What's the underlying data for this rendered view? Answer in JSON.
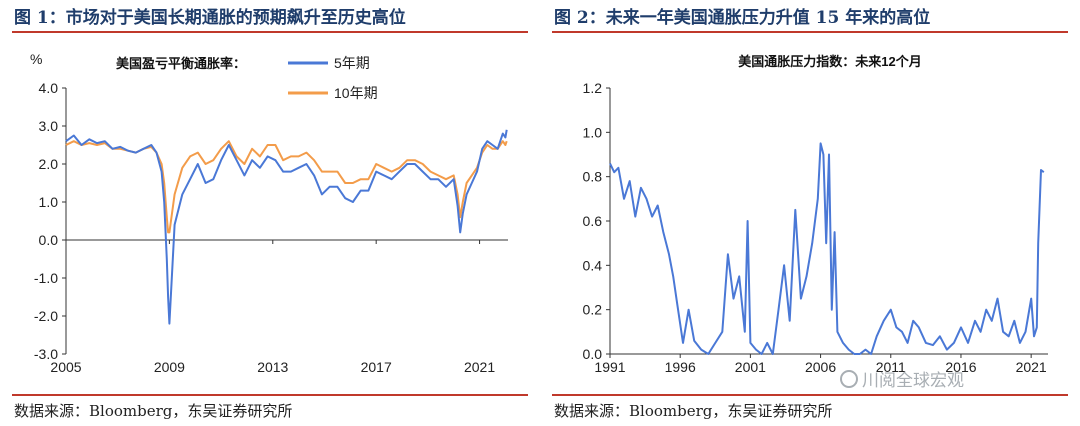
{
  "chart_data": [
    {
      "type": "line",
      "title": "图 1：市场对于美国长期通胀的预期飙升至历史高位",
      "unit": "%",
      "legend_title": "美国盈亏平衡通胀率：",
      "legend_placement": "top-center",
      "xlim": [
        2005,
        2022.1
      ],
      "ylim": [
        -3.0,
        4.0
      ],
      "x_ticks": [
        "2005",
        "2009",
        "2013",
        "2017",
        "2021"
      ],
      "y_ticks": [
        "4.0",
        "3.0",
        "2.0",
        "1.0",
        "0.0",
        "-1.0",
        "-2.0",
        "-3.0"
      ],
      "grid": false,
      "series": [
        {
          "name": "5年期",
          "color": "#4a78d6",
          "x": [
            2005.0,
            2005.3,
            2005.6,
            2005.9,
            2006.2,
            2006.5,
            2006.8,
            2007.1,
            2007.4,
            2007.7,
            2008.0,
            2008.3,
            2008.5,
            2008.7,
            2008.8,
            2008.9,
            2008.95,
            2009.0,
            2009.2,
            2009.5,
            2009.8,
            2010.1,
            2010.4,
            2010.7,
            2011.0,
            2011.3,
            2011.6,
            2011.9,
            2012.2,
            2012.5,
            2012.8,
            2013.1,
            2013.4,
            2013.7,
            2014.0,
            2014.3,
            2014.6,
            2014.9,
            2015.2,
            2015.5,
            2015.8,
            2016.1,
            2016.4,
            2016.7,
            2017.0,
            2017.3,
            2017.6,
            2017.9,
            2018.2,
            2018.5,
            2018.8,
            2019.1,
            2019.4,
            2019.7,
            2020.0,
            2020.15,
            2020.25,
            2020.35,
            2020.5,
            2020.7,
            2020.9,
            2021.1,
            2021.3,
            2021.5,
            2021.7,
            2021.9,
            2022.0,
            2022.05
          ],
          "values": [
            2.6,
            2.75,
            2.5,
            2.65,
            2.55,
            2.6,
            2.4,
            2.45,
            2.35,
            2.3,
            2.4,
            2.5,
            2.3,
            1.8,
            1.0,
            -0.5,
            -1.5,
            -2.2,
            0.4,
            1.2,
            1.6,
            2.0,
            1.5,
            1.6,
            2.1,
            2.5,
            2.1,
            1.7,
            2.1,
            1.9,
            2.2,
            2.1,
            1.8,
            1.8,
            1.9,
            2.0,
            1.7,
            1.2,
            1.4,
            1.4,
            1.1,
            1.0,
            1.3,
            1.3,
            1.8,
            1.7,
            1.6,
            1.8,
            2.0,
            2.0,
            1.8,
            1.6,
            1.6,
            1.4,
            1.6,
            0.9,
            0.2,
            0.7,
            1.2,
            1.5,
            1.8,
            2.4,
            2.6,
            2.5,
            2.4,
            2.8,
            2.7,
            2.9
          ]
        },
        {
          "name": "10年期",
          "color": "#f39c4a",
          "x": [
            2005.0,
            2005.3,
            2005.6,
            2005.9,
            2006.2,
            2006.5,
            2006.8,
            2007.1,
            2007.4,
            2007.7,
            2008.0,
            2008.3,
            2008.5,
            2008.7,
            2008.8,
            2008.9,
            2008.95,
            2009.0,
            2009.2,
            2009.5,
            2009.8,
            2010.1,
            2010.4,
            2010.7,
            2011.0,
            2011.3,
            2011.6,
            2011.9,
            2012.2,
            2012.5,
            2012.8,
            2013.1,
            2013.4,
            2013.7,
            2014.0,
            2014.3,
            2014.6,
            2014.9,
            2015.2,
            2015.5,
            2015.8,
            2016.1,
            2016.4,
            2016.7,
            2017.0,
            2017.3,
            2017.6,
            2017.9,
            2018.2,
            2018.5,
            2018.8,
            2019.1,
            2019.4,
            2019.7,
            2020.0,
            2020.15,
            2020.25,
            2020.35,
            2020.5,
            2020.7,
            2020.9,
            2021.1,
            2021.3,
            2021.5,
            2021.7,
            2021.9,
            2022.0,
            2022.05
          ],
          "values": [
            2.5,
            2.6,
            2.5,
            2.55,
            2.5,
            2.55,
            2.4,
            2.4,
            2.35,
            2.3,
            2.4,
            2.45,
            2.3,
            2.0,
            1.5,
            0.6,
            0.2,
            0.2,
            1.2,
            1.9,
            2.2,
            2.3,
            2.0,
            2.1,
            2.4,
            2.6,
            2.2,
            2.0,
            2.4,
            2.2,
            2.5,
            2.5,
            2.1,
            2.2,
            2.2,
            2.3,
            2.1,
            1.8,
            1.8,
            1.8,
            1.5,
            1.5,
            1.6,
            1.6,
            2.0,
            1.9,
            1.8,
            1.9,
            2.1,
            2.1,
            2.0,
            1.8,
            1.7,
            1.6,
            1.7,
            1.2,
            0.6,
            1.0,
            1.5,
            1.7,
            1.9,
            2.3,
            2.5,
            2.4,
            2.4,
            2.6,
            2.5,
            2.6
          ]
        }
      ]
    },
    {
      "type": "line",
      "title": "图 2：未来一年美国通胀压力升值 15 年来的高位",
      "chart_title": "美国通胀压力指数：未来12个月",
      "xlim": [
        1991,
        2022.2
      ],
      "ylim": [
        0.0,
        1.2
      ],
      "x_ticks": [
        "1991",
        "1996",
        "2001",
        "2006",
        "2011",
        "2016",
        "2021"
      ],
      "y_ticks": [
        "1.2",
        "1.0",
        "0.8",
        "0.6",
        "0.4",
        "0.2",
        "0.0"
      ],
      "grid": false,
      "series": [
        {
          "name": "",
          "color": "#4a78d6",
          "x": [
            1991.0,
            1991.3,
            1991.6,
            1992.0,
            1992.4,
            1992.8,
            1993.2,
            1993.6,
            1994.0,
            1994.4,
            1994.8,
            1995.2,
            1995.5,
            1995.8,
            1996.2,
            1996.6,
            1997.0,
            1997.5,
            1998.0,
            1998.5,
            1999.0,
            1999.4,
            1999.8,
            2000.2,
            2000.6,
            2000.8,
            2001.0,
            2001.4,
            2001.8,
            2002.2,
            2002.6,
            2003.0,
            2003.4,
            2003.8,
            2004.2,
            2004.6,
            2005.0,
            2005.4,
            2005.8,
            2006.0,
            2006.2,
            2006.4,
            2006.6,
            2006.8,
            2007.0,
            2007.2,
            2007.6,
            2008.0,
            2008.4,
            2008.8,
            2009.2,
            2009.6,
            2010.0,
            2010.5,
            2011.0,
            2011.4,
            2011.8,
            2012.2,
            2012.6,
            2013.0,
            2013.5,
            2014.0,
            2014.5,
            2015.0,
            2015.5,
            2016.0,
            2016.5,
            2017.0,
            2017.4,
            2017.8,
            2018.2,
            2018.6,
            2019.0,
            2019.4,
            2019.8,
            2020.2,
            2020.6,
            2021.0,
            2021.2,
            2021.4,
            2021.5,
            2021.7,
            2021.9
          ],
          "values": [
            0.86,
            0.82,
            0.84,
            0.7,
            0.78,
            0.62,
            0.75,
            0.7,
            0.62,
            0.67,
            0.55,
            0.45,
            0.35,
            0.22,
            0.05,
            0.2,
            0.06,
            0.02,
            0.0,
            0.05,
            0.1,
            0.45,
            0.25,
            0.35,
            0.1,
            0.6,
            0.05,
            0.02,
            0.0,
            0.05,
            0.0,
            0.2,
            0.4,
            0.15,
            0.65,
            0.25,
            0.35,
            0.5,
            0.7,
            0.95,
            0.9,
            0.5,
            0.9,
            0.2,
            0.55,
            0.1,
            0.05,
            0.02,
            0.0,
            0.0,
            0.02,
            0.0,
            0.08,
            0.15,
            0.2,
            0.12,
            0.1,
            0.05,
            0.15,
            0.12,
            0.05,
            0.04,
            0.08,
            0.02,
            0.05,
            0.12,
            0.05,
            0.15,
            0.1,
            0.2,
            0.15,
            0.25,
            0.1,
            0.08,
            0.15,
            0.05,
            0.1,
            0.25,
            0.08,
            0.12,
            0.5,
            0.83,
            0.82
          ]
        }
      ]
    }
  ],
  "source_1": "数据来源：Bloomberg，东吴证券研究所",
  "source_2": "数据来源：Bloomberg，东吴证券研究所",
  "watermark": "川阅全球宏观"
}
